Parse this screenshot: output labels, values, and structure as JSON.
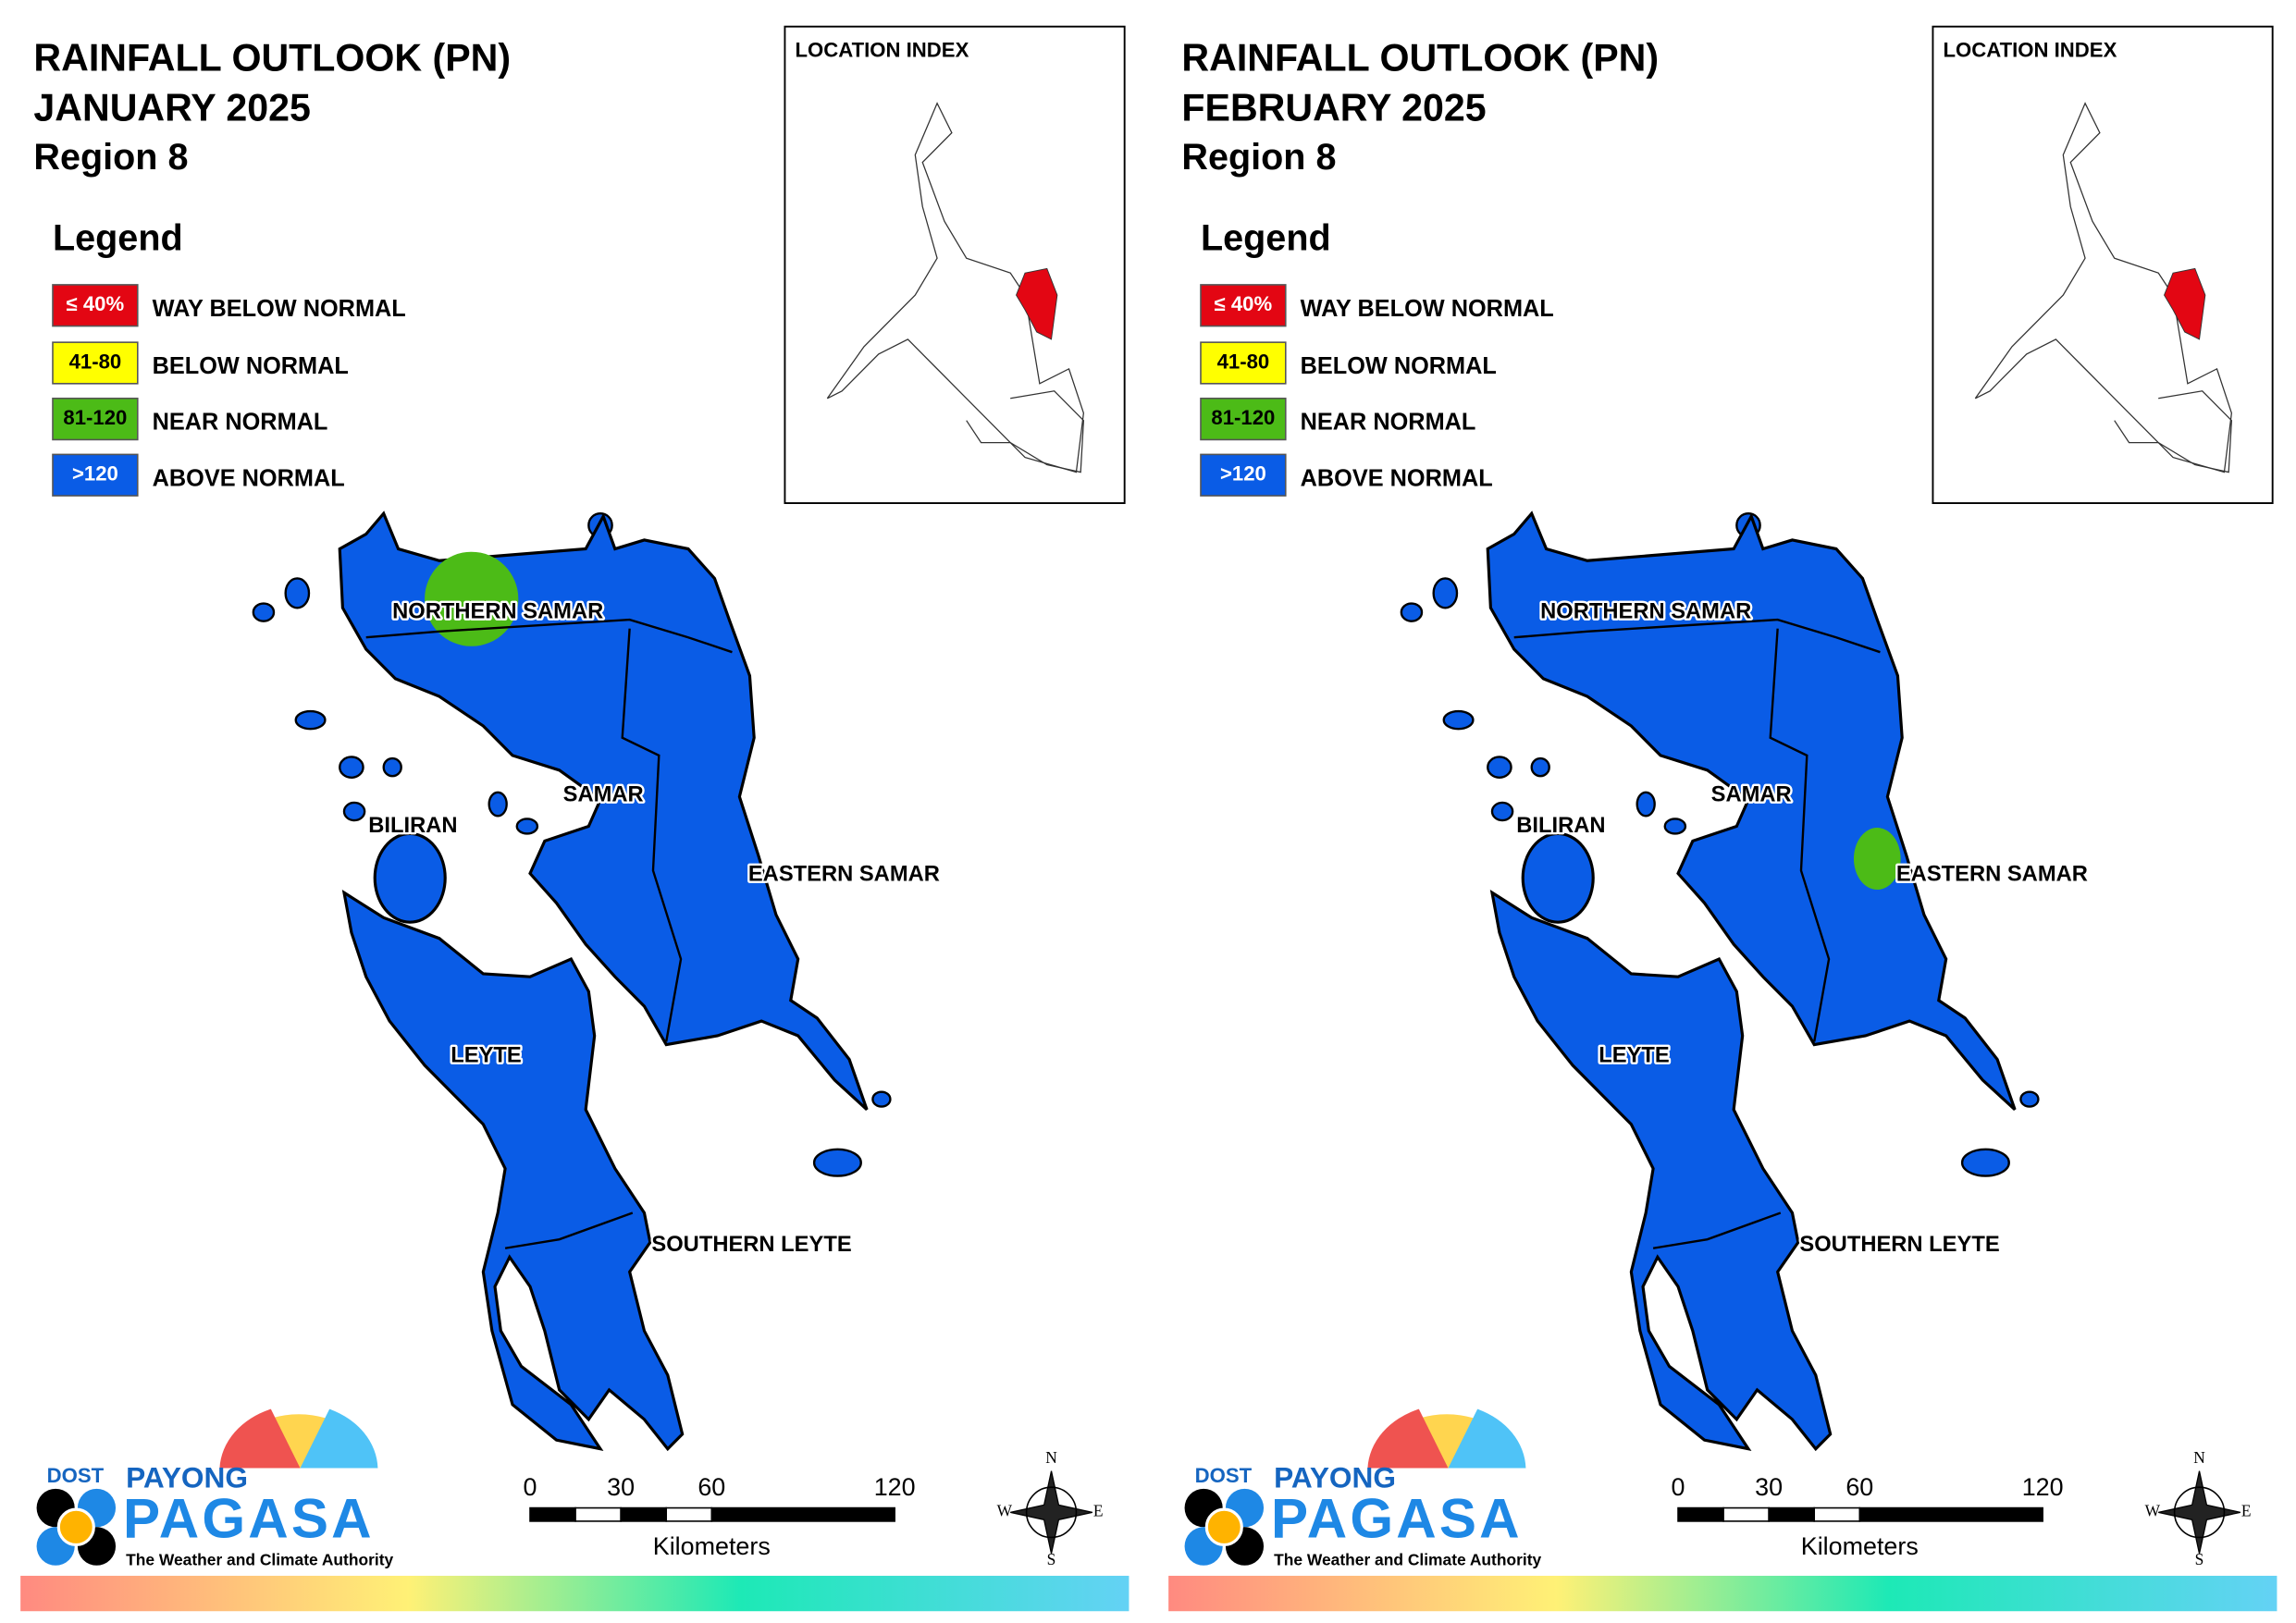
{
  "panels": [
    {
      "title": "RAINFALL OUTLOOK (PN)",
      "month": "JANUARY 2025",
      "region": "Region 8",
      "legend_title": "Legend",
      "legend": [
        {
          "swatch": "≤ 40%",
          "label": "WAY BELOW NORMAL",
          "color": "#e30613"
        },
        {
          "swatch": "41-80",
          "label": "BELOW NORMAL",
          "color": "#ffff00"
        },
        {
          "swatch": "81-120",
          "label": "NEAR NORMAL",
          "color": "#4cbb17"
        },
        {
          "swatch": ">120",
          "label": "ABOVE NORMAL",
          "color": "#0a5ce6"
        }
      ],
      "location_index": "LOCATION INDEX",
      "provinces": [
        "NORTHERN SAMAR",
        "SAMAR",
        "BILIRAN",
        "EASTERN SAMAR",
        "LEYTE",
        "SOUTHERN LEYTE"
      ],
      "scale": {
        "ticks": [
          "0",
          "30",
          "60",
          "120"
        ],
        "unit": "Kilometers"
      },
      "compass": [
        "N",
        "W",
        "E",
        "S"
      ],
      "logo": {
        "dost": "DOST",
        "payong": "PAYONG",
        "pagasa": "PAGASA",
        "tagline": "The Weather and Climate Authority"
      }
    },
    {
      "title": "RAINFALL OUTLOOK (PN)",
      "month": "FEBRUARY 2025",
      "region": "Region 8",
      "legend_title": "Legend",
      "legend": [
        {
          "swatch": "≤ 40%",
          "label": "WAY BELOW NORMAL",
          "color": "#e30613"
        },
        {
          "swatch": "41-80",
          "label": "BELOW NORMAL",
          "color": "#ffff00"
        },
        {
          "swatch": "81-120",
          "label": "NEAR NORMAL",
          "color": "#4cbb17"
        },
        {
          "swatch": ">120",
          "label": "ABOVE NORMAL",
          "color": "#0a5ce6"
        }
      ],
      "location_index": "LOCATION INDEX",
      "provinces": [
        "NORTHERN SAMAR",
        "SAMAR",
        "BILIRAN",
        "EASTERN SAMAR",
        "LEYTE",
        "SOUTHERN LEYTE"
      ],
      "scale": {
        "ticks": [
          "0",
          "30",
          "60",
          "120"
        ],
        "unit": "Kilometers"
      },
      "compass": [
        "N",
        "W",
        "E",
        "S"
      ],
      "logo": {
        "dost": "DOST",
        "payong": "PAYONG",
        "pagasa": "PAGASA",
        "tagline": "The Weather and Climate Authority"
      }
    }
  ]
}
